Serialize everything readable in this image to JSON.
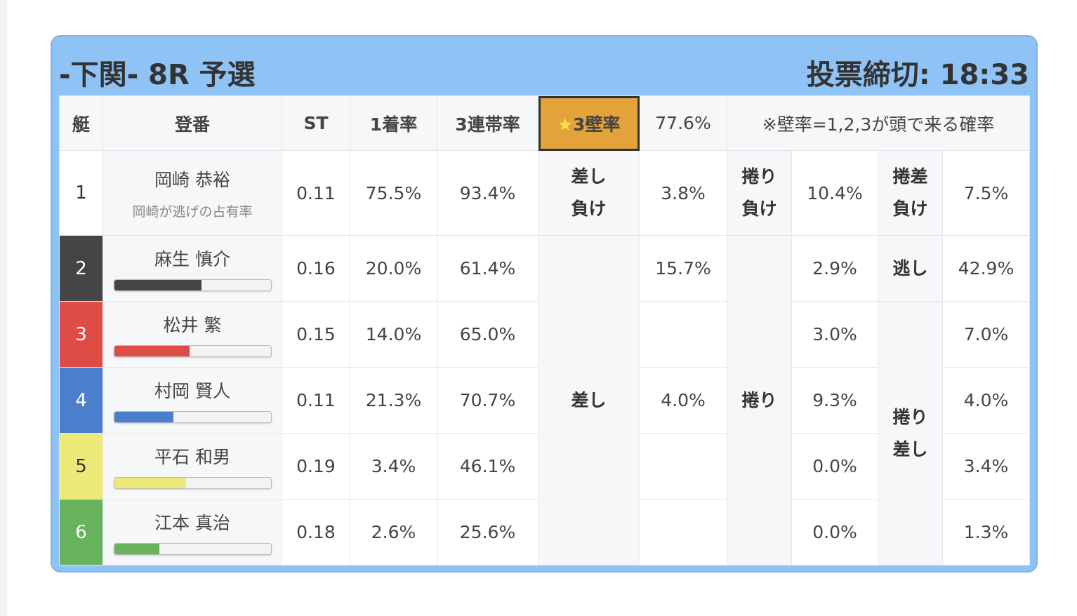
{
  "header": {
    "title": "-下関- 8R 予選",
    "deadline": "投票締切: 18:33"
  },
  "table": {
    "columns": [
      "艇",
      "登番",
      "ST",
      "1着率",
      "3連帯率"
    ],
    "wall_label": {
      "star": "★",
      "text": "3壁率"
    },
    "wall_rate": "77.6%",
    "note": "※壁率=1,2,3が頭で来る確率",
    "labels": {
      "sashi_lose": [
        "差し",
        "負け"
      ],
      "makuri_lose": [
        "捲り",
        "負け"
      ],
      "mz_lose": [
        "捲差",
        "負け"
      ],
      "sashi": "差し",
      "makuri": "捲り",
      "nige": "逃し",
      "mz": [
        "捲り",
        "差し"
      ]
    },
    "rows": [
      {
        "lane": "1",
        "name": "岡崎 恭裕",
        "sub": "岡崎が逃げの占有率",
        "st": "0.11",
        "win": "75.5%",
        "top3": "93.4%",
        "sashi_rate": "3.8%",
        "makuri_rate": "10.4%",
        "mz_rate": "7.5%"
      },
      {
        "lane": "2",
        "name": "麻生 慎介",
        "bar": 56,
        "st": "0.16",
        "win": "20.0%",
        "top3": "61.4%",
        "sashi_rate": "15.7%",
        "makuri_rate": "2.9%",
        "mz_rate": "42.9%"
      },
      {
        "lane": "3",
        "name": "松井 繁",
        "bar": 48,
        "st": "0.15",
        "win": "14.0%",
        "top3": "65.0%",
        "makuri_rate": "3.0%",
        "mz_rate": "7.0%"
      },
      {
        "lane": "4",
        "name": "村岡 賢人",
        "bar": 38,
        "st": "0.11",
        "win": "21.3%",
        "top3": "70.7%",
        "sashi_rate": "4.0%",
        "makuri_rate": "9.3%",
        "mz_rate": "4.0%"
      },
      {
        "lane": "5",
        "name": "平石 和男",
        "bar": 46,
        "st": "0.19",
        "win": "3.4%",
        "top3": "46.1%",
        "makuri_rate": "0.0%",
        "mz_rate": "3.4%"
      },
      {
        "lane": "6",
        "name": "江本 真治",
        "bar": 29,
        "st": "0.18",
        "win": "2.6%",
        "top3": "25.6%",
        "makuri_rate": "0.0%",
        "mz_rate": "1.3%"
      }
    ]
  }
}
